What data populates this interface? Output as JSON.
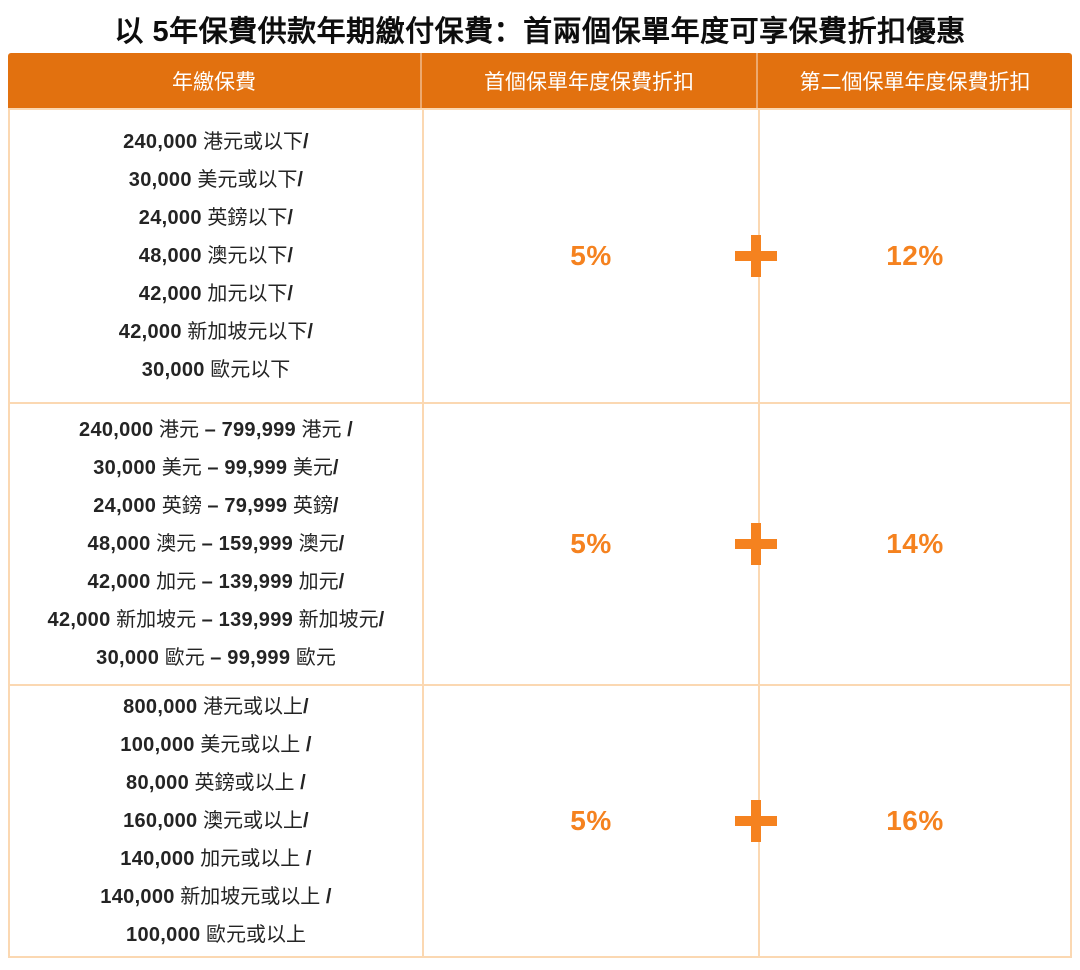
{
  "title": "以 5年保費供款年期繳付保費：首兩個保單年度可享保費折扣優惠",
  "colors": {
    "header_bg": "#E2710F",
    "accent": "#F5821F",
    "grid": "#FBD8B2",
    "text": "#242424"
  },
  "table": {
    "headers": [
      "年繳保費",
      "首個保單年度保費折扣",
      "第二個保單年度保費折扣"
    ],
    "discount_join_icon": "plus-icon",
    "rows": [
      {
        "premiums": [
          "240,000 港元或以下/",
          "30,000 美元或以下/",
          "24,000 英鎊以下/",
          "48,000 澳元以下/",
          "42,000 加元以下/",
          "42,000 新加坡元以下/",
          "30,000 歐元以下"
        ],
        "first_year_discount": "5%",
        "second_year_discount": "12%"
      },
      {
        "premiums": [
          "240,000 港元 – 799,999 港元 /",
          "30,000 美元 – 99,999 美元/",
          "24,000 英鎊 – 79,999 英鎊/",
          "48,000 澳元 – 159,999 澳元/",
          "42,000 加元 – 139,999 加元/",
          "42,000 新加坡元 – 139,999 新加坡元/",
          "30,000 歐元 – 99,999 歐元"
        ],
        "first_year_discount": "5%",
        "second_year_discount": "14%"
      },
      {
        "premiums": [
          "800,000 港元或以上/",
          "100,000 美元或以上 /",
          "80,000 英鎊或以上 /",
          "160,000 澳元或以上/",
          "140,000 加元或以上 /",
          "140,000 新加坡元或以上 /",
          "100,000 歐元或以上"
        ],
        "first_year_discount": "5%",
        "second_year_discount": "16%"
      }
    ]
  }
}
